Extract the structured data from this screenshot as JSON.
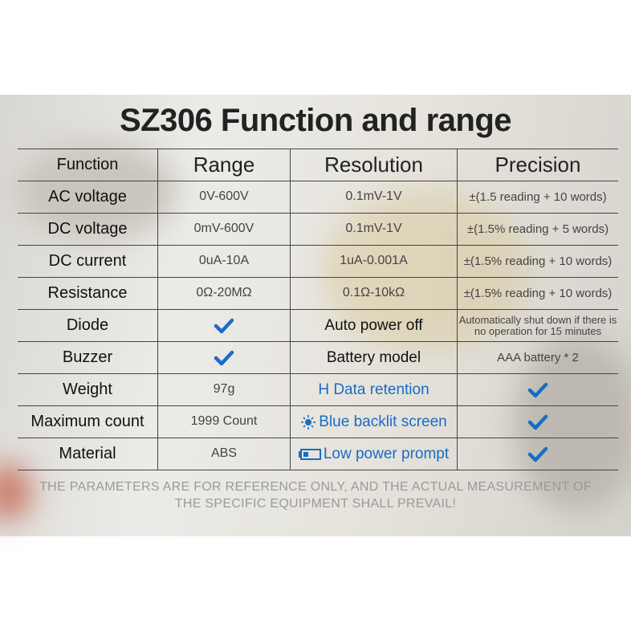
{
  "header": {
    "title": "SZ306 Function and range"
  },
  "table": {
    "columns": [
      "Function",
      "Range",
      "Resolution",
      "Precision"
    ],
    "rows": [
      [
        "AC voltage",
        "0V-600V",
        "0.1mV-1V",
        "±(1.5 reading + 10 words)"
      ],
      [
        "DC voltage",
        "0mV-600V",
        "0.1mV-1V",
        "±(1.5% reading + 5 words)"
      ],
      [
        "DC current",
        "0uA-10A",
        "1uA-0.001A",
        "±(1.5% reading + 10 words)"
      ],
      [
        "Resistance",
        "0Ω-20MΩ",
        "0.1Ω-10kΩ",
        "±(1.5% reading + 10 words)"
      ],
      [
        "Diode",
        null,
        "Auto power off",
        "Automatically shut down if there is no operation for 15 minutes"
      ],
      [
        "Buzzer",
        null,
        "Battery model",
        "AAA battery * 2"
      ],
      [
        "Weight",
        "97g",
        "H Data retention",
        null
      ],
      [
        "Maximum count",
        "1999 Count",
        "Blue backlit screen",
        null
      ],
      [
        "Material",
        "ABS",
        "Low power prompt",
        null
      ]
    ]
  },
  "footer": {
    "note": "THE PARAMETERS ARE FOR REFERENCE ONLY, AND THE ACTUAL MEASUREMENT OF THE SPECIFIC EQUIPMENT SHALL PREVAIL!"
  }
}
